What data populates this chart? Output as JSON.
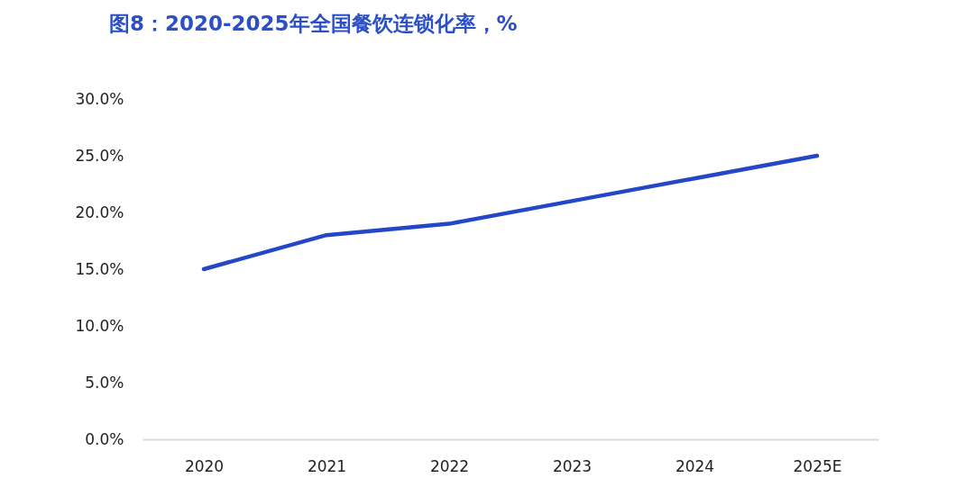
{
  "chart_data": {
    "type": "line",
    "title": "图8：2020-2025年全国餐饮连锁化率，%",
    "categories": [
      "2020",
      "2021",
      "2022",
      "2023",
      "2024",
      "2025E"
    ],
    "series": [
      {
        "color": "#2447c8",
        "values": [
          15,
          18,
          19,
          21,
          23,
          25
        ]
      }
    ],
    "ylim": [
      0,
      30
    ],
    "yticks": [
      {
        "value": 0,
        "label": "0.0%"
      },
      {
        "value": 5,
        "label": "5.0%"
      },
      {
        "value": 10,
        "label": "10.0%"
      },
      {
        "value": 15,
        "label": "15.0%"
      },
      {
        "value": 20,
        "label": "20.0%"
      },
      {
        "value": 25,
        "label": "25.0%"
      },
      {
        "value": 30,
        "label": "30.0%"
      }
    ],
    "grid": false,
    "marker": "none",
    "line_style": "solid"
  }
}
